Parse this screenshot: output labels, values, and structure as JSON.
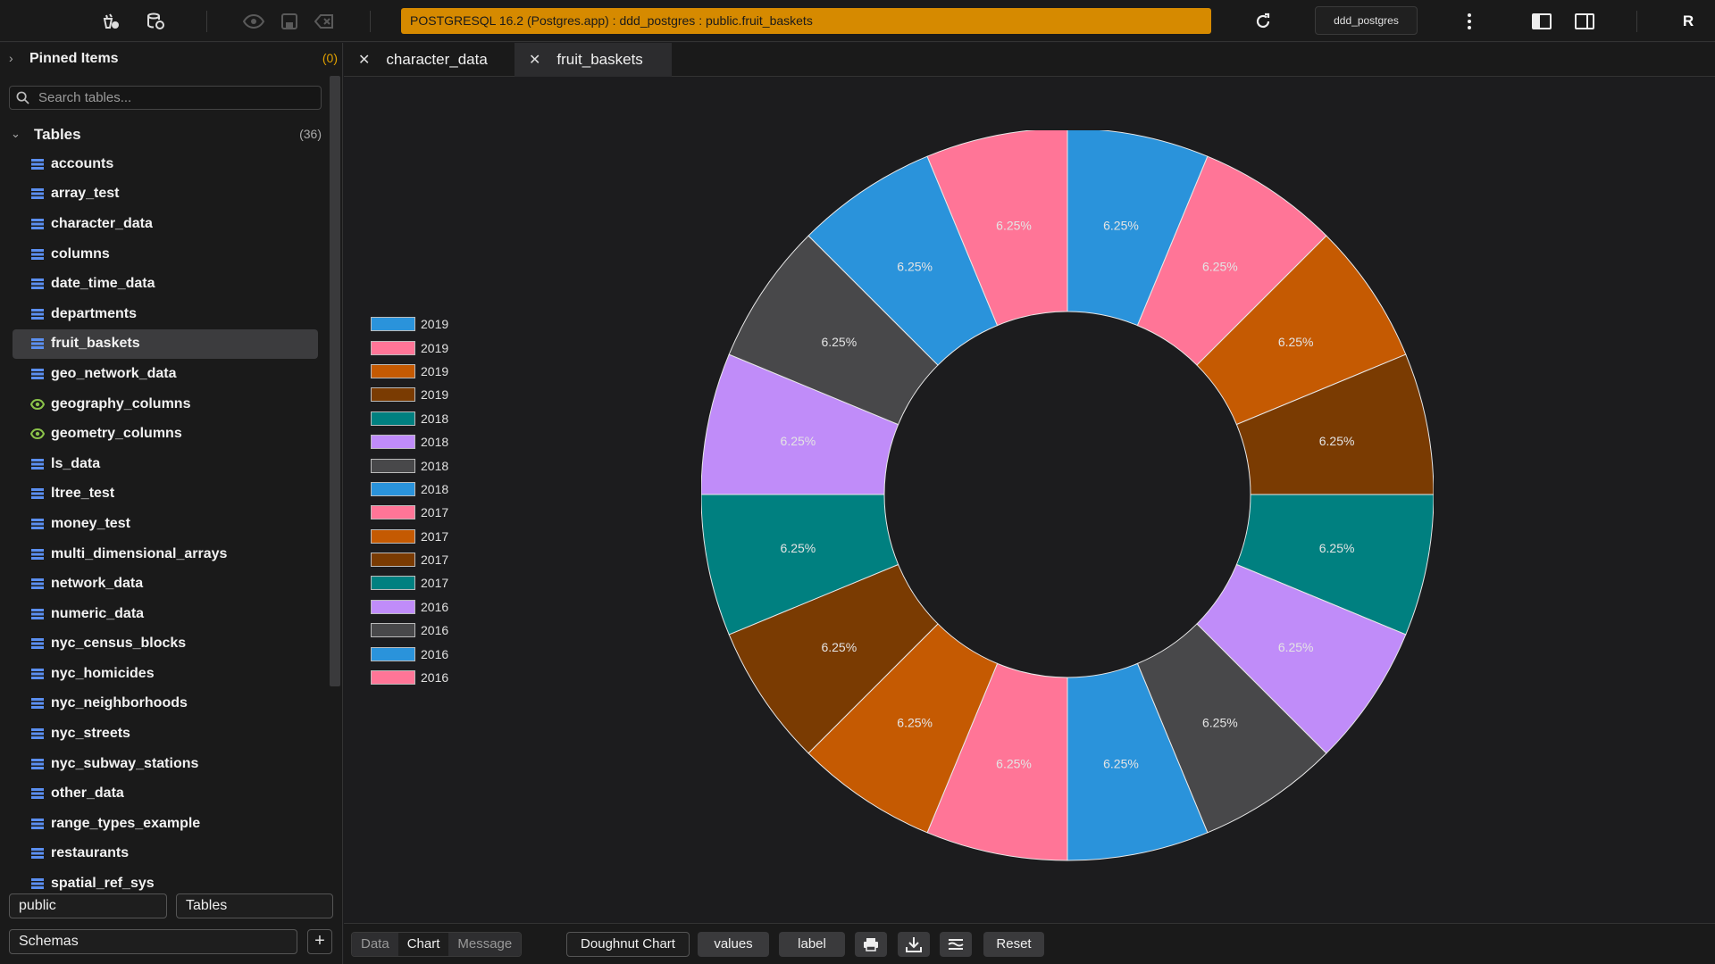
{
  "toolbar": {
    "connection_banner": "POSTGRESQL 16.2 (Postgres.app) : ddd_postgres : public.fruit_baskets",
    "database_button": "ddd_postgres",
    "avatar_initial": "R"
  },
  "sidebar": {
    "pinned": {
      "label": "Pinned Items",
      "count": "(0)"
    },
    "search": {
      "placeholder": "Search tables..."
    },
    "tables_header": {
      "label": "Tables",
      "count": "(36)"
    },
    "tables": [
      {
        "name": "accounts",
        "icon": "table-icon"
      },
      {
        "name": "array_test",
        "icon": "table-icon"
      },
      {
        "name": "character_data",
        "icon": "table-icon"
      },
      {
        "name": "columns",
        "icon": "table-icon"
      },
      {
        "name": "date_time_data",
        "icon": "table-icon"
      },
      {
        "name": "departments",
        "icon": "table-icon"
      },
      {
        "name": "fruit_baskets",
        "icon": "table-icon",
        "selected": true
      },
      {
        "name": "geo_network_data",
        "icon": "table-icon"
      },
      {
        "name": "geography_columns",
        "icon": "view-icon"
      },
      {
        "name": "geometry_columns",
        "icon": "view-icon"
      },
      {
        "name": "ls_data",
        "icon": "table-icon"
      },
      {
        "name": "ltree_test",
        "icon": "table-icon"
      },
      {
        "name": "money_test",
        "icon": "table-icon"
      },
      {
        "name": "multi_dimensional_arrays",
        "icon": "table-icon"
      },
      {
        "name": "network_data",
        "icon": "table-icon"
      },
      {
        "name": "numeric_data",
        "icon": "table-icon"
      },
      {
        "name": "nyc_census_blocks",
        "icon": "table-icon"
      },
      {
        "name": "nyc_homicides",
        "icon": "table-icon"
      },
      {
        "name": "nyc_neighborhoods",
        "icon": "table-icon"
      },
      {
        "name": "nyc_streets",
        "icon": "table-icon"
      },
      {
        "name": "nyc_subway_stations",
        "icon": "table-icon"
      },
      {
        "name": "other_data",
        "icon": "table-icon"
      },
      {
        "name": "range_types_example",
        "icon": "table-icon"
      },
      {
        "name": "restaurants",
        "icon": "table-icon"
      },
      {
        "name": "spatial_ref_sys",
        "icon": "table-icon"
      }
    ],
    "schema_select": "public",
    "object_type_select": "Tables",
    "schemas_select": "Schemas",
    "add_label": "+"
  },
  "tabs": [
    {
      "label": "character_data",
      "active": false
    },
    {
      "label": "fruit_baskets",
      "active": true
    }
  ],
  "colors": {
    "blue": "#2a93db",
    "pink": "#ff7597",
    "orange": "#c55a02",
    "brown": "#7a3b02",
    "teal": "#008080",
    "lavender": "#c08cf9",
    "gray": "#48484a",
    "accent": "#d68a00"
  },
  "chart_data": {
    "type": "pie",
    "variant": "doughnut",
    "legend_position": "left",
    "legend": [
      {
        "label": "2019",
        "color": "#2a93db"
      },
      {
        "label": "2019",
        "color": "#ff7597"
      },
      {
        "label": "2019",
        "color": "#c55a02"
      },
      {
        "label": "2019",
        "color": "#7a3b02"
      },
      {
        "label": "2018",
        "color": "#008080"
      },
      {
        "label": "2018",
        "color": "#c08cf9"
      },
      {
        "label": "2018",
        "color": "#48484a"
      },
      {
        "label": "2018",
        "color": "#2a93db"
      },
      {
        "label": "2017",
        "color": "#ff7597"
      },
      {
        "label": "2017",
        "color": "#c55a02"
      },
      {
        "label": "2017",
        "color": "#7a3b02"
      },
      {
        "label": "2017",
        "color": "#008080"
      },
      {
        "label": "2016",
        "color": "#c08cf9"
      },
      {
        "label": "2016",
        "color": "#48484a"
      },
      {
        "label": "2016",
        "color": "#2a93db"
      },
      {
        "label": "2016",
        "color": "#ff7597"
      }
    ],
    "slices": [
      {
        "value": 6.25,
        "label": "6.25%",
        "color": "#2a93db"
      },
      {
        "value": 6.25,
        "label": "6.25%",
        "color": "#ff7597"
      },
      {
        "value": 6.25,
        "label": "6.25%",
        "color": "#c55a02"
      },
      {
        "value": 6.25,
        "label": "6.25%",
        "color": "#7a3b02"
      },
      {
        "value": 6.25,
        "label": "6.25%",
        "color": "#008080"
      },
      {
        "value": 6.25,
        "label": "6.25%",
        "color": "#c08cf9"
      },
      {
        "value": 6.25,
        "label": "6.25%",
        "color": "#48484a"
      },
      {
        "value": 6.25,
        "label": "6.25%",
        "color": "#2a93db"
      },
      {
        "value": 6.25,
        "label": "6.25%",
        "color": "#ff7597"
      },
      {
        "value": 6.25,
        "label": "6.25%",
        "color": "#c55a02"
      },
      {
        "value": 6.25,
        "label": "6.25%",
        "color": "#7a3b02"
      },
      {
        "value": 6.25,
        "label": "6.25%",
        "color": "#008080"
      },
      {
        "value": 6.25,
        "label": "6.25%",
        "color": "#c08cf9"
      },
      {
        "value": 6.25,
        "label": "6.25%",
        "color": "#48484a"
      },
      {
        "value": 6.25,
        "label": "6.25%",
        "color": "#2a93db"
      },
      {
        "value": 6.25,
        "label": "6.25%",
        "color": "#ff7597"
      }
    ]
  },
  "bottom": {
    "view_tabs": [
      "Data",
      "Chart",
      "Message"
    ],
    "active_view": "Chart",
    "chart_type": "Doughnut Chart",
    "values_button": "values",
    "label_button": "label",
    "reset_button": "Reset"
  }
}
